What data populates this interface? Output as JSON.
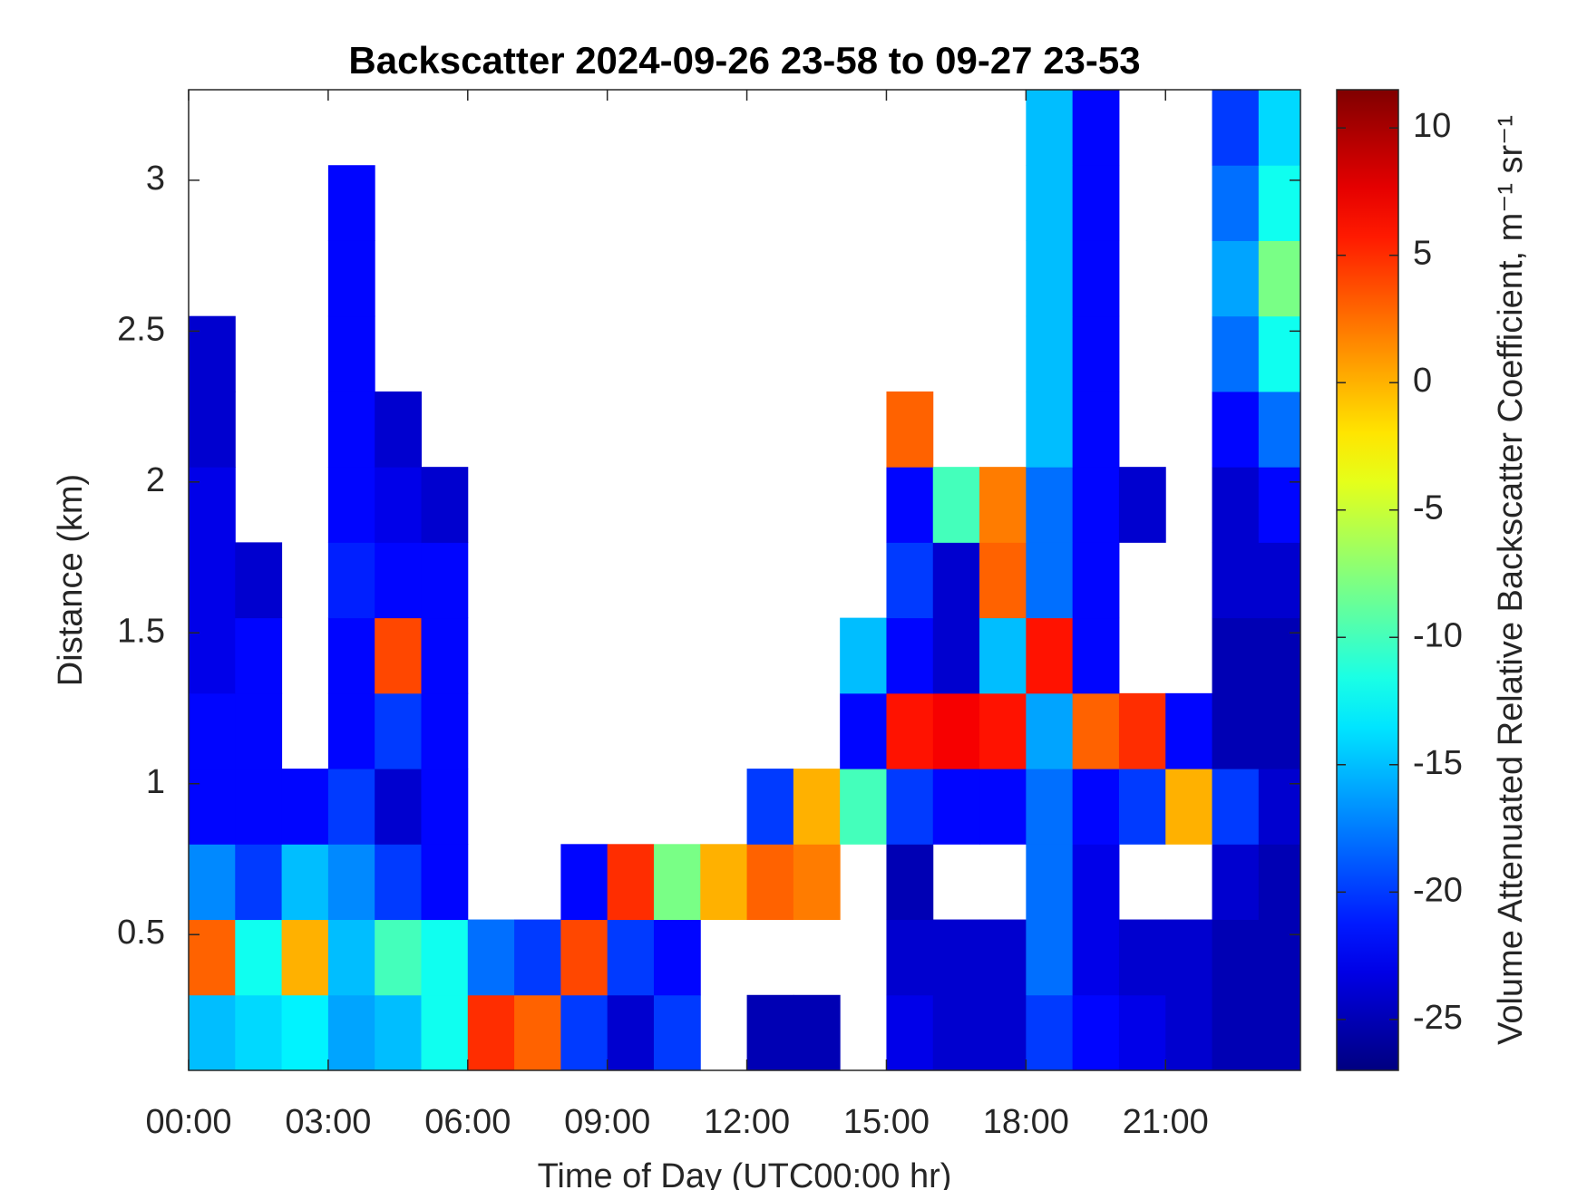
{
  "chart_data": {
    "type": "heatmap",
    "title": "Backscatter 2024-09-26 23-58 to 09-27 23-53",
    "x_label": "Time of Day (UTC00:00 hr)",
    "y_label": "Distance (km)",
    "colorbar_label": "Volume Attenuated Relative Backscatter Coefficient, m⁻¹ sr⁻¹",
    "colormap": "jet",
    "xlim": [
      0,
      23.9
    ],
    "ylim": [
      0.05,
      3.3
    ],
    "clim": [
      -27,
      11.5
    ],
    "xticks": [
      {
        "value": 0,
        "label": "00:00"
      },
      {
        "value": 3,
        "label": "03:00"
      },
      {
        "value": 6,
        "label": "06:00"
      },
      {
        "value": 9,
        "label": "09:00"
      },
      {
        "value": 12,
        "label": "12:00"
      },
      {
        "value": 15,
        "label": "15:00"
      },
      {
        "value": 18,
        "label": "18:00"
      },
      {
        "value": 21,
        "label": "21:00"
      }
    ],
    "yticks": [
      0.5,
      1,
      1.5,
      2,
      2.5,
      3
    ],
    "cticks": [
      -25,
      -20,
      -15,
      -10,
      -5,
      0,
      5,
      10
    ],
    "x_bins": [
      0,
      1,
      2,
      3,
      4,
      5,
      6,
      7,
      8,
      9,
      10,
      11,
      12,
      13,
      14,
      15,
      16,
      17,
      18,
      19,
      20,
      21,
      22,
      23,
      23.9
    ],
    "y_bins": [
      0.05,
      0.3,
      0.55,
      0.8,
      1.05,
      1.3,
      1.55,
      1.8,
      2.05,
      2.3,
      2.55,
      2.8,
      3.05,
      3.3
    ],
    "z": [
      [
        -15,
        -14,
        -13,
        -16,
        -15,
        -12,
        5,
        3,
        -20,
        -24,
        -20,
        null,
        -25,
        -25,
        null,
        -23,
        -24,
        -24,
        -20,
        -22,
        -23,
        -24,
        -25,
        -25
      ],
      [
        3,
        -12,
        0,
        -15,
        -10,
        -12,
        -18,
        -20,
        4,
        -20,
        -22,
        null,
        null,
        null,
        null,
        -24,
        -24,
        -24,
        -18,
        -23,
        -24,
        -24,
        -25,
        -25
      ],
      [
        -17,
        -20,
        -15,
        -17,
        -20,
        -22,
        null,
        null,
        -22,
        5,
        -8,
        0,
        3,
        2,
        null,
        -25,
        null,
        null,
        -18,
        -23,
        null,
        null,
        -24,
        -25
      ],
      [
        -22,
        -22,
        -22,
        -20,
        -24,
        -22,
        null,
        null,
        null,
        null,
        null,
        null,
        -20,
        0,
        -10,
        -20,
        -22,
        -22,
        -18,
        -22,
        -20,
        0,
        -20,
        -24
      ],
      [
        -22,
        -22,
        null,
        -22,
        -20,
        -22,
        null,
        null,
        null,
        null,
        null,
        null,
        null,
        null,
        -22,
        6,
        7,
        6,
        -16,
        3,
        5,
        -22,
        -25,
        -25
      ],
      [
        -23,
        -22,
        null,
        -22,
        4,
        -22,
        null,
        null,
        null,
        null,
        null,
        null,
        null,
        null,
        -15,
        -22,
        -24,
        -15,
        6,
        -22,
        null,
        null,
        -25,
        -25
      ],
      [
        -23,
        -24,
        null,
        -21,
        -22,
        -22,
        null,
        null,
        null,
        null,
        null,
        null,
        null,
        null,
        null,
        -20,
        -24,
        3,
        -18,
        -22,
        null,
        null,
        -24,
        -24
      ],
      [
        -23,
        null,
        null,
        -22,
        -23,
        -24,
        null,
        null,
        null,
        null,
        null,
        null,
        null,
        null,
        null,
        -22,
        -10,
        2,
        -18,
        -22,
        -24,
        null,
        -24,
        -22
      ],
      [
        -24,
        null,
        null,
        -22,
        -24,
        null,
        null,
        null,
        null,
        null,
        null,
        null,
        null,
        null,
        null,
        3,
        null,
        null,
        -15,
        -22,
        null,
        null,
        -22,
        -18
      ],
      [
        -24,
        null,
        null,
        -22,
        null,
        null,
        null,
        null,
        null,
        null,
        null,
        null,
        null,
        null,
        null,
        null,
        null,
        null,
        -15,
        -22,
        null,
        null,
        -18,
        -12
      ],
      [
        null,
        null,
        null,
        -22,
        null,
        null,
        null,
        null,
        null,
        null,
        null,
        null,
        null,
        null,
        null,
        null,
        null,
        null,
        -15,
        -22,
        null,
        null,
        -16,
        -8
      ],
      [
        null,
        null,
        null,
        -22,
        null,
        null,
        null,
        null,
        null,
        null,
        null,
        null,
        null,
        null,
        null,
        null,
        null,
        null,
        -15,
        -22,
        null,
        null,
        -18,
        -12
      ],
      [
        null,
        null,
        null,
        null,
        null,
        null,
        null,
        null,
        null,
        null,
        null,
        null,
        null,
        null,
        null,
        null,
        null,
        null,
        -15,
        -22,
        null,
        null,
        -20,
        -14
      ]
    ]
  }
}
